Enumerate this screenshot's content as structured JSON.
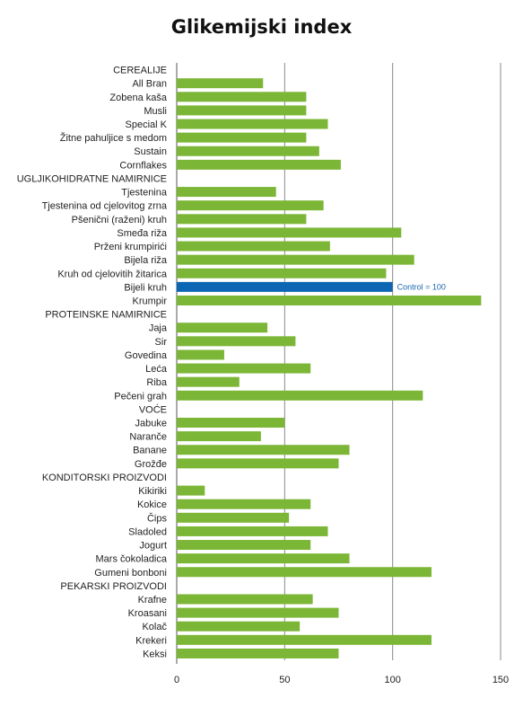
{
  "chart_data": {
    "type": "bar",
    "orientation": "horizontal",
    "title": "Glikemijski index",
    "xlabel": "",
    "ylabel": "",
    "xlim": [
      0,
      150
    ],
    "xticks": [
      0,
      50,
      100,
      150
    ],
    "grid": true,
    "legend": "none",
    "colors": {
      "bar": "#7cb636",
      "highlight": "#0d66b3",
      "grid": "#888888",
      "axis": "#555555"
    },
    "categories": [
      "CEREALIJE",
      "All Bran",
      "Zobena kaša",
      "Musli",
      "Special K",
      "Žitne pahuljice s medom",
      "Sustain",
      "Cornflakes",
      "UGLJIKOHIDRATNE NAMIRNICE",
      "Tjestenina",
      "Tjestenina od cjelovitog zrna",
      "Pšenični (raženi) kruh",
      "Smeđa riža",
      "Prženi krumpirići",
      "Bijela riža",
      "Kruh od cjelovitih žitarica",
      "Bijeli kruh",
      "Krumpir",
      "PROTEINSKE NAMIRNICE",
      "Jaja",
      "Sir",
      "Govedina",
      "Leća",
      "Riba",
      "Pečeni grah",
      "VOĆE",
      "Jabuke",
      "Naranče",
      "Banane",
      "Grožđe",
      "KONDITORSKI PROIZVODI",
      "Kikiriki",
      "Kokice",
      "Čips",
      "Sladoled",
      "Jogurt",
      "Mars čokoladica",
      "Gumeni bonboni",
      "PEKARSKI PROIZVODI",
      "Krafne",
      "Kroasani",
      "Kolač",
      "Krekeri",
      "Keksi"
    ],
    "values": [
      null,
      40,
      60,
      60,
      70,
      60,
      66,
      76,
      null,
      46,
      68,
      60,
      104,
      71,
      110,
      97,
      100,
      141,
      null,
      42,
      55,
      22,
      62,
      29,
      114,
      null,
      50,
      39,
      80,
      75,
      null,
      13,
      62,
      52,
      70,
      62,
      80,
      118,
      null,
      63,
      75,
      57,
      118,
      75
    ],
    "highlight_index": 16,
    "annotation": {
      "text": "Control = 100",
      "category": "Bijeli kruh"
    }
  }
}
